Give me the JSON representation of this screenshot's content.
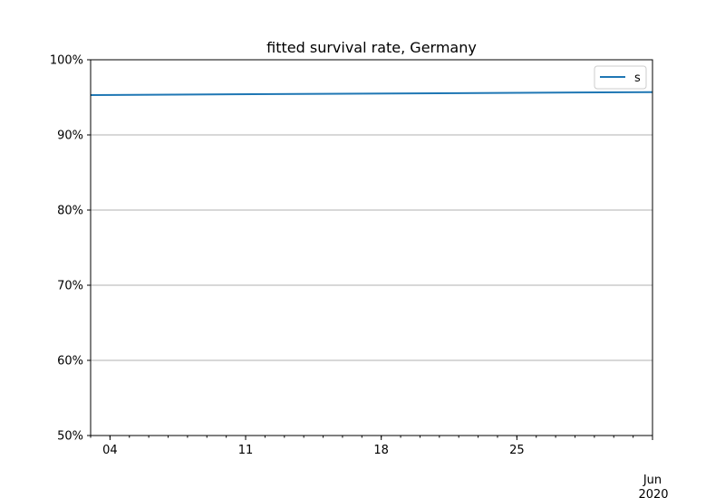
{
  "chart_data": {
    "type": "line",
    "title": "fitted survival rate, Germany",
    "xlabel": "",
    "ylabel": "",
    "x_axis": {
      "type": "date",
      "xlim": [
        "2020-05-03",
        "2020-06-01"
      ],
      "major_ticks": [
        {
          "date": "2020-05-04",
          "label": "04"
        },
        {
          "date": "2020-05-11",
          "label": "11"
        },
        {
          "date": "2020-05-18",
          "label": "18"
        },
        {
          "date": "2020-05-25",
          "label": "25"
        }
      ],
      "month_tick": {
        "date": "2020-06-01",
        "label": "Jun",
        "sublabel": "2020"
      }
    },
    "y_axis": {
      "ylim": [
        0.5,
        1.0
      ],
      "ticks": [
        {
          "value": 0.5,
          "label": "50%"
        },
        {
          "value": 0.6,
          "label": "60%"
        },
        {
          "value": 0.7,
          "label": "70%"
        },
        {
          "value": 0.8,
          "label": "80%"
        },
        {
          "value": 0.9,
          "label": "90%"
        },
        {
          "value": 1.0,
          "label": "100%"
        }
      ],
      "grid": true
    },
    "legend": {
      "placement": "top-right"
    },
    "series": [
      {
        "name": "s",
        "color": "#1f77b4",
        "x": [
          "2020-05-03",
          "2020-06-01"
        ],
        "values": [
          0.953,
          0.957
        ]
      }
    ]
  }
}
